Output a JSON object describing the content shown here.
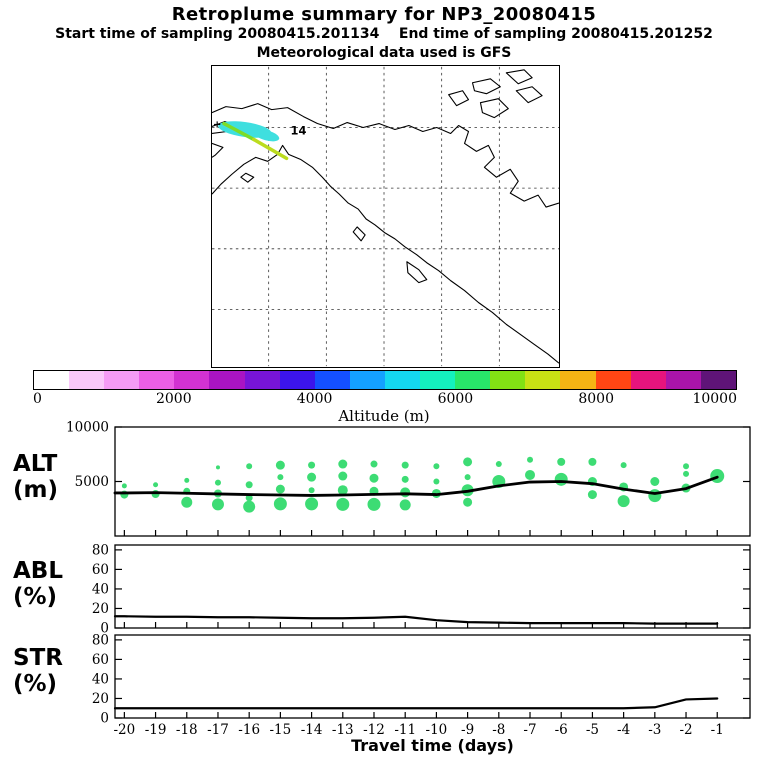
{
  "header": {
    "title": "Retroplume summary for NP3_20080415",
    "subtitle": "Start time of sampling 20080415.201134    End time of sampling 20080415.201252",
    "met_line": "Meteorological data used is GFS"
  },
  "map": {
    "plume_label": "14",
    "release_marker": "+",
    "plume_fill": "#3fdfdf",
    "streak_color_start": "#7ddc28",
    "streak_color_end": "#bcdc1e"
  },
  "colorbar": {
    "title": "Altitude (m)",
    "tick_labels": [
      "0",
      "2000",
      "4000",
      "6000",
      "8000",
      "10000"
    ],
    "range_m": [
      0,
      10000
    ],
    "colors": [
      "#ffffff",
      "#fac8fa",
      "#f59bf5",
      "#eb5fe6",
      "#d232d2",
      "#aa14c3",
      "#7814d7",
      "#3c14eb",
      "#1450ff",
      "#14a0ff",
      "#14d7f0",
      "#14f0be",
      "#28e669",
      "#82e114",
      "#c8e114",
      "#f5b414",
      "#ff4614",
      "#e6147d",
      "#aa14aa",
      "#5f1478"
    ]
  },
  "chart_data": {
    "type": "scatter",
    "subtype": "bubble-and-line multi-panel time series",
    "x_label": "Travel time (days)",
    "x_ticks": [
      -20,
      -19,
      -18,
      -17,
      -16,
      -15,
      -14,
      -13,
      -12,
      -11,
      -10,
      -9,
      -8,
      -7,
      -6,
      -5,
      -4,
      -3,
      -2,
      -1
    ],
    "x_lim": [
      -20.3,
      0.05
    ],
    "bubble_color": "#3ddc74",
    "line_color": "#000000",
    "bubble_format": [
      "travel_time_days",
      "altitude_m",
      "radius_px"
    ],
    "panels": [
      {
        "name": "ALT",
        "unit": "(m)",
        "y_lim": [
          0,
          10000
        ],
        "y_ticks": [
          5000,
          10000
        ],
        "mean_line": {
          "x": [
            -20.3,
            -20,
            -19,
            -18,
            -17,
            -16,
            -15,
            -14,
            -13,
            -12,
            -11,
            -10,
            -9,
            -8,
            -7,
            -6,
            -5,
            -4,
            -3,
            -2,
            -1
          ],
          "y": [
            3950,
            3950,
            3980,
            3920,
            3860,
            3800,
            3760,
            3720,
            3760,
            3820,
            3870,
            3800,
            4100,
            4600,
            4950,
            5000,
            4800,
            4300,
            3900,
            4350,
            5400
          ]
        },
        "bubbles": [
          [
            -20,
            4600,
            2.5
          ],
          [
            -20,
            3800,
            4
          ],
          [
            -19,
            4700,
            2.5
          ],
          [
            -19,
            3850,
            4
          ],
          [
            -18,
            5100,
            2.5
          ],
          [
            -18,
            4100,
            3.5
          ],
          [
            -18,
            3100,
            5.5
          ],
          [
            -17,
            6300,
            2
          ],
          [
            -17,
            4900,
            3
          ],
          [
            -17,
            3900,
            4
          ],
          [
            -17,
            2900,
            6
          ],
          [
            -16,
            6400,
            3
          ],
          [
            -16,
            4700,
            3.5
          ],
          [
            -16,
            3500,
            3.5
          ],
          [
            -16,
            2700,
            6
          ],
          [
            -15,
            6500,
            4.5
          ],
          [
            -15,
            5400,
            3
          ],
          [
            -15,
            4300,
            4.5
          ],
          [
            -15,
            2950,
            6.5
          ],
          [
            -14,
            6500,
            3.5
          ],
          [
            -14,
            5400,
            4.5
          ],
          [
            -14,
            4200,
            3
          ],
          [
            -14,
            2950,
            6.5
          ],
          [
            -13,
            6600,
            4.5
          ],
          [
            -13,
            5500,
            4.5
          ],
          [
            -13,
            4200,
            5
          ],
          [
            -13,
            2900,
            6.5
          ],
          [
            -12,
            6600,
            3.5
          ],
          [
            -12,
            5300,
            4.5
          ],
          [
            -12,
            4100,
            4.5
          ],
          [
            -12,
            2900,
            6.5
          ],
          [
            -11,
            6500,
            3.5
          ],
          [
            -11,
            5200,
            3.5
          ],
          [
            -11,
            4000,
            5
          ],
          [
            -11,
            2850,
            5.5
          ],
          [
            -10,
            6400,
            3
          ],
          [
            -10,
            5000,
            3
          ],
          [
            -10,
            3900,
            4.5
          ],
          [
            -9,
            6800,
            4.5
          ],
          [
            -9,
            5400,
            3
          ],
          [
            -9,
            4200,
            6
          ],
          [
            -9,
            3100,
            4.5
          ],
          [
            -8,
            6600,
            3
          ],
          [
            -8,
            5000,
            6.5
          ],
          [
            -7,
            7000,
            3
          ],
          [
            -7,
            5600,
            5
          ],
          [
            -6,
            6800,
            4
          ],
          [
            -6,
            5200,
            6.5
          ],
          [
            -5,
            6800,
            4
          ],
          [
            -5,
            5000,
            4.5
          ],
          [
            -5,
            3800,
            4.5
          ],
          [
            -4,
            6500,
            3
          ],
          [
            -4,
            4500,
            4.5
          ],
          [
            -4,
            3200,
            6
          ],
          [
            -3,
            5000,
            4.5
          ],
          [
            -3,
            3700,
            6.5
          ],
          [
            -2,
            6400,
            3
          ],
          [
            -2,
            5700,
            3
          ],
          [
            -2,
            4400,
            4.5
          ],
          [
            -1,
            5500,
            7
          ]
        ]
      },
      {
        "name": "ABL",
        "unit": "(%)",
        "y_lim": [
          0,
          85
        ],
        "y_ticks": [
          0,
          20,
          40,
          60,
          80
        ],
        "line": {
          "x": [
            -20.3,
            -20,
            -19,
            -18,
            -17,
            -16,
            -15,
            -14,
            -13,
            -12,
            -11,
            -10,
            -9,
            -8,
            -7,
            -6,
            -5,
            -4,
            -3,
            -2,
            -1
          ],
          "y": [
            12,
            12,
            11.5,
            11.5,
            11,
            11,
            10.5,
            10,
            10,
            10.5,
            11.5,
            8,
            6,
            5.5,
            5,
            5,
            5,
            5,
            4.5,
            4.5,
            4.5
          ]
        }
      },
      {
        "name": "STR",
        "unit": "(%)",
        "y_lim": [
          0,
          85
        ],
        "y_ticks": [
          0,
          20,
          40,
          60,
          80
        ],
        "line": {
          "x": [
            -20.3,
            -20,
            -19,
            -18,
            -17,
            -16,
            -15,
            -14,
            -13,
            -12,
            -11,
            -10,
            -9,
            -8,
            -7,
            -6,
            -5,
            -4,
            -3,
            -2,
            -1
          ],
          "y": [
            10,
            10,
            10,
            10,
            10,
            10,
            10,
            10,
            10,
            10,
            10,
            10,
            10,
            10,
            10,
            10,
            10,
            10,
            11,
            19,
            20
          ]
        }
      }
    ]
  }
}
